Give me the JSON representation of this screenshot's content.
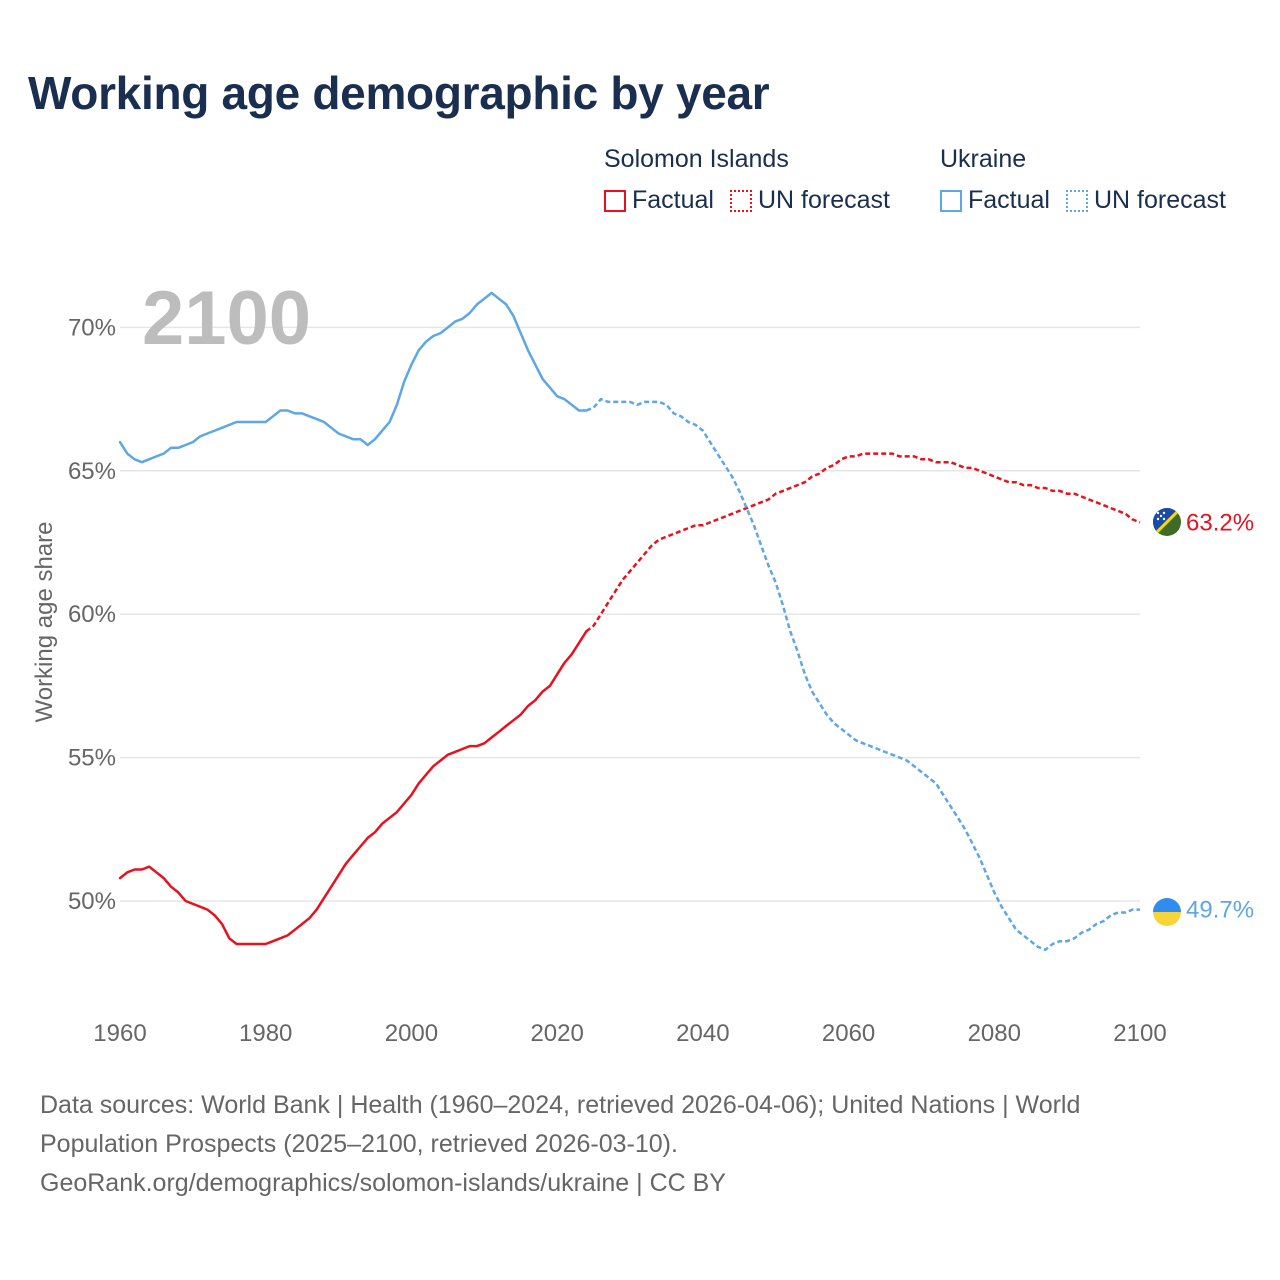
{
  "title": "Working age demographic by year",
  "legend": {
    "groups": [
      {
        "country": "Solomon Islands",
        "color": "#e8121f",
        "factual_label": "Factual",
        "forecast_label": "UN forecast"
      },
      {
        "country": "Ukraine",
        "color": "#5ea6e6",
        "factual_label": "Factual",
        "forecast_label": "UN forecast"
      }
    ]
  },
  "chart_data": {
    "type": "line",
    "title": "Working age demographic by year",
    "year_watermark": "2100",
    "ylabel": "Working age share",
    "xlabel": "",
    "xlim": [
      1960,
      2100
    ],
    "ylim": [
      46.2,
      72.0
    ],
    "x_ticks": [
      1960,
      1980,
      2000,
      2020,
      2040,
      2060,
      2080,
      2100
    ],
    "y_ticks": [
      50,
      55,
      60,
      65,
      70
    ],
    "y_tick_labels": [
      "50%",
      "55%",
      "60%",
      "65%",
      "70%"
    ],
    "grid": true,
    "series": [
      {
        "name": "Solomon Islands",
        "color": "#e8121f",
        "forecast_start": 2024,
        "end_label": "63.2%",
        "flag_icon": "solomon-islands-flag-icon",
        "points": [
          [
            1960,
            50.8
          ],
          [
            1961,
            51.0
          ],
          [
            1962,
            51.1
          ],
          [
            1963,
            51.1
          ],
          [
            1964,
            51.2
          ],
          [
            1965,
            51.0
          ],
          [
            1966,
            50.8
          ],
          [
            1967,
            50.5
          ],
          [
            1968,
            50.3
          ],
          [
            1969,
            50.0
          ],
          [
            1970,
            49.9
          ],
          [
            1971,
            49.8
          ],
          [
            1972,
            49.7
          ],
          [
            1973,
            49.5
          ],
          [
            1974,
            49.2
          ],
          [
            1975,
            48.7
          ],
          [
            1976,
            48.5
          ],
          [
            1977,
            48.5
          ],
          [
            1978,
            48.5
          ],
          [
            1979,
            48.5
          ],
          [
            1980,
            48.5
          ],
          [
            1981,
            48.6
          ],
          [
            1982,
            48.7
          ],
          [
            1983,
            48.8
          ],
          [
            1984,
            49.0
          ],
          [
            1985,
            49.2
          ],
          [
            1986,
            49.4
          ],
          [
            1987,
            49.7
          ],
          [
            1988,
            50.1
          ],
          [
            1989,
            50.5
          ],
          [
            1990,
            50.9
          ],
          [
            1991,
            51.3
          ],
          [
            1992,
            51.6
          ],
          [
            1993,
            51.9
          ],
          [
            1994,
            52.2
          ],
          [
            1995,
            52.4
          ],
          [
            1996,
            52.7
          ],
          [
            1997,
            52.9
          ],
          [
            1998,
            53.1
          ],
          [
            1999,
            53.4
          ],
          [
            2000,
            53.7
          ],
          [
            2001,
            54.1
          ],
          [
            2002,
            54.4
          ],
          [
            2003,
            54.7
          ],
          [
            2004,
            54.9
          ],
          [
            2005,
            55.1
          ],
          [
            2006,
            55.2
          ],
          [
            2007,
            55.3
          ],
          [
            2008,
            55.4
          ],
          [
            2009,
            55.4
          ],
          [
            2010,
            55.5
          ],
          [
            2011,
            55.7
          ],
          [
            2012,
            55.9
          ],
          [
            2013,
            56.1
          ],
          [
            2014,
            56.3
          ],
          [
            2015,
            56.5
          ],
          [
            2016,
            56.8
          ],
          [
            2017,
            57.0
          ],
          [
            2018,
            57.3
          ],
          [
            2019,
            57.5
          ],
          [
            2020,
            57.9
          ],
          [
            2021,
            58.3
          ],
          [
            2022,
            58.6
          ],
          [
            2023,
            59.0
          ],
          [
            2024,
            59.4
          ],
          [
            2025,
            59.6
          ],
          [
            2026,
            60.0
          ],
          [
            2027,
            60.4
          ],
          [
            2028,
            60.8
          ],
          [
            2029,
            61.2
          ],
          [
            2030,
            61.5
          ],
          [
            2031,
            61.8
          ],
          [
            2032,
            62.1
          ],
          [
            2033,
            62.4
          ],
          [
            2034,
            62.6
          ],
          [
            2035,
            62.7
          ],
          [
            2036,
            62.8
          ],
          [
            2037,
            62.9
          ],
          [
            2038,
            63.0
          ],
          [
            2039,
            63.1
          ],
          [
            2040,
            63.1
          ],
          [
            2041,
            63.2
          ],
          [
            2042,
            63.3
          ],
          [
            2043,
            63.4
          ],
          [
            2044,
            63.5
          ],
          [
            2045,
            63.6
          ],
          [
            2046,
            63.7
          ],
          [
            2047,
            63.8
          ],
          [
            2048,
            63.9
          ],
          [
            2049,
            64.0
          ],
          [
            2050,
            64.2
          ],
          [
            2051,
            64.3
          ],
          [
            2052,
            64.4
          ],
          [
            2053,
            64.5
          ],
          [
            2054,
            64.6
          ],
          [
            2055,
            64.8
          ],
          [
            2056,
            64.9
          ],
          [
            2057,
            65.1
          ],
          [
            2058,
            65.2
          ],
          [
            2059,
            65.4
          ],
          [
            2060,
            65.5
          ],
          [
            2061,
            65.5
          ],
          [
            2062,
            65.6
          ],
          [
            2063,
            65.6
          ],
          [
            2064,
            65.6
          ],
          [
            2065,
            65.6
          ],
          [
            2066,
            65.6
          ],
          [
            2067,
            65.5
          ],
          [
            2068,
            65.5
          ],
          [
            2069,
            65.5
          ],
          [
            2070,
            65.4
          ],
          [
            2071,
            65.4
          ],
          [
            2072,
            65.3
          ],
          [
            2073,
            65.3
          ],
          [
            2074,
            65.3
          ],
          [
            2075,
            65.2
          ],
          [
            2076,
            65.1
          ],
          [
            2077,
            65.1
          ],
          [
            2078,
            65.0
          ],
          [
            2079,
            64.9
          ],
          [
            2080,
            64.8
          ],
          [
            2081,
            64.7
          ],
          [
            2082,
            64.6
          ],
          [
            2083,
            64.6
          ],
          [
            2084,
            64.5
          ],
          [
            2085,
            64.5
          ],
          [
            2086,
            64.4
          ],
          [
            2087,
            64.4
          ],
          [
            2088,
            64.3
          ],
          [
            2089,
            64.3
          ],
          [
            2090,
            64.2
          ],
          [
            2091,
            64.2
          ],
          [
            2092,
            64.1
          ],
          [
            2093,
            64.0
          ],
          [
            2094,
            63.9
          ],
          [
            2095,
            63.8
          ],
          [
            2096,
            63.7
          ],
          [
            2097,
            63.6
          ],
          [
            2098,
            63.5
          ],
          [
            2099,
            63.3
          ],
          [
            2100,
            63.2
          ]
        ]
      },
      {
        "name": "Ukraine",
        "color": "#5ea6e6",
        "forecast_start": 2024,
        "end_label": "49.7%",
        "flag_icon": "ukraine-flag-icon",
        "points": [
          [
            1960,
            66.0
          ],
          [
            1961,
            65.6
          ],
          [
            1962,
            65.4
          ],
          [
            1963,
            65.3
          ],
          [
            1964,
            65.4
          ],
          [
            1965,
            65.5
          ],
          [
            1966,
            65.6
          ],
          [
            1967,
            65.8
          ],
          [
            1968,
            65.8
          ],
          [
            1969,
            65.9
          ],
          [
            1970,
            66.0
          ],
          [
            1971,
            66.2
          ],
          [
            1972,
            66.3
          ],
          [
            1973,
            66.4
          ],
          [
            1974,
            66.5
          ],
          [
            1975,
            66.6
          ],
          [
            1976,
            66.7
          ],
          [
            1977,
            66.7
          ],
          [
            1978,
            66.7
          ],
          [
            1979,
            66.7
          ],
          [
            1980,
            66.7
          ],
          [
            1981,
            66.9
          ],
          [
            1982,
            67.1
          ],
          [
            1983,
            67.1
          ],
          [
            1984,
            67.0
          ],
          [
            1985,
            67.0
          ],
          [
            1986,
            66.9
          ],
          [
            1987,
            66.8
          ],
          [
            1988,
            66.7
          ],
          [
            1989,
            66.5
          ],
          [
            1990,
            66.3
          ],
          [
            1991,
            66.2
          ],
          [
            1992,
            66.1
          ],
          [
            1993,
            66.1
          ],
          [
            1994,
            65.9
          ],
          [
            1995,
            66.1
          ],
          [
            1996,
            66.4
          ],
          [
            1997,
            66.7
          ],
          [
            1998,
            67.3
          ],
          [
            1999,
            68.1
          ],
          [
            2000,
            68.7
          ],
          [
            2001,
            69.2
          ],
          [
            2002,
            69.5
          ],
          [
            2003,
            69.7
          ],
          [
            2004,
            69.8
          ],
          [
            2005,
            70.0
          ],
          [
            2006,
            70.2
          ],
          [
            2007,
            70.3
          ],
          [
            2008,
            70.5
          ],
          [
            2009,
            70.8
          ],
          [
            2010,
            71.0
          ],
          [
            2011,
            71.2
          ],
          [
            2012,
            71.0
          ],
          [
            2013,
            70.8
          ],
          [
            2014,
            70.4
          ],
          [
            2015,
            69.8
          ],
          [
            2016,
            69.2
          ],
          [
            2017,
            68.7
          ],
          [
            2018,
            68.2
          ],
          [
            2019,
            67.9
          ],
          [
            2020,
            67.6
          ],
          [
            2021,
            67.5
          ],
          [
            2022,
            67.3
          ],
          [
            2023,
            67.1
          ],
          [
            2024,
            67.1
          ],
          [
            2025,
            67.2
          ],
          [
            2026,
            67.5
          ],
          [
            2027,
            67.4
          ],
          [
            2028,
            67.4
          ],
          [
            2029,
            67.4
          ],
          [
            2030,
            67.4
          ],
          [
            2031,
            67.3
          ],
          [
            2032,
            67.4
          ],
          [
            2033,
            67.4
          ],
          [
            2034,
            67.4
          ],
          [
            2035,
            67.3
          ],
          [
            2036,
            67.0
          ],
          [
            2037,
            66.9
          ],
          [
            2038,
            66.7
          ],
          [
            2039,
            66.6
          ],
          [
            2040,
            66.4
          ],
          [
            2041,
            66.0
          ],
          [
            2042,
            65.6
          ],
          [
            2043,
            65.2
          ],
          [
            2044,
            64.8
          ],
          [
            2045,
            64.3
          ],
          [
            2046,
            63.7
          ],
          [
            2047,
            63.1
          ],
          [
            2048,
            62.4
          ],
          [
            2049,
            61.7
          ],
          [
            2050,
            61.1
          ],
          [
            2051,
            60.3
          ],
          [
            2052,
            59.4
          ],
          [
            2053,
            58.7
          ],
          [
            2054,
            57.9
          ],
          [
            2055,
            57.3
          ],
          [
            2056,
            56.9
          ],
          [
            2057,
            56.5
          ],
          [
            2058,
            56.2
          ],
          [
            2059,
            56.0
          ],
          [
            2060,
            55.8
          ],
          [
            2061,
            55.6
          ],
          [
            2062,
            55.5
          ],
          [
            2063,
            55.4
          ],
          [
            2064,
            55.3
          ],
          [
            2065,
            55.2
          ],
          [
            2066,
            55.1
          ],
          [
            2067,
            55.0
          ],
          [
            2068,
            54.9
          ],
          [
            2069,
            54.7
          ],
          [
            2070,
            54.5
          ],
          [
            2071,
            54.3
          ],
          [
            2072,
            54.1
          ],
          [
            2073,
            53.7
          ],
          [
            2074,
            53.3
          ],
          [
            2075,
            52.9
          ],
          [
            2076,
            52.5
          ],
          [
            2077,
            52.0
          ],
          [
            2078,
            51.5
          ],
          [
            2079,
            50.9
          ],
          [
            2080,
            50.3
          ],
          [
            2081,
            49.8
          ],
          [
            2082,
            49.4
          ],
          [
            2083,
            49.0
          ],
          [
            2084,
            48.8
          ],
          [
            2085,
            48.6
          ],
          [
            2086,
            48.4
          ],
          [
            2087,
            48.3
          ],
          [
            2088,
            48.5
          ],
          [
            2089,
            48.6
          ],
          [
            2090,
            48.6
          ],
          [
            2091,
            48.7
          ],
          [
            2092,
            48.9
          ],
          [
            2093,
            49.0
          ],
          [
            2094,
            49.2
          ],
          [
            2095,
            49.3
          ],
          [
            2096,
            49.5
          ],
          [
            2097,
            49.6
          ],
          [
            2098,
            49.6
          ],
          [
            2099,
            49.7
          ],
          [
            2100,
            49.7
          ]
        ]
      }
    ]
  },
  "footer": {
    "line1": "Data sources: World Bank | Health (1960–2024, retrieved 2026-04-06); United Nations | World",
    "line2": "Population Prospects (2025–2100, retrieved 2026-03-10).",
    "line3": "GeoRank.org/demographics/solomon-islands/ukraine | CC BY"
  }
}
